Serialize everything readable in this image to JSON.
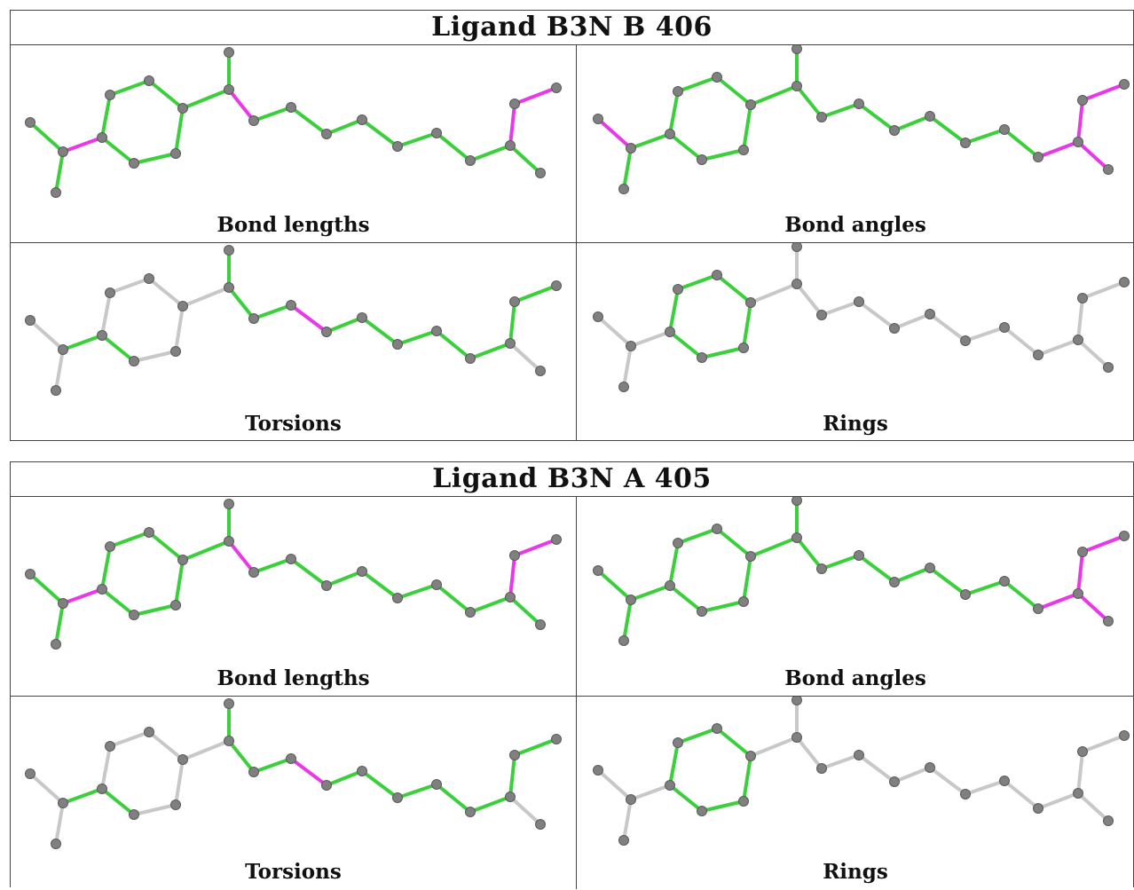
{
  "colors": {
    "ok": "#3ccf3c",
    "outlier": "#e838e8",
    "unassessed": "#c8c8c8",
    "atom": "#808080"
  },
  "blocks": [
    {
      "title": "Ligand B3N B 406",
      "panels": [
        {
          "caption": "Bond lengths",
          "bond_status": [
            "ok",
            "outlier",
            "ok",
            "ok",
            "ok",
            "ok",
            "ok",
            "ok",
            "ok",
            "ok",
            "outlier",
            "ok",
            "ok",
            "ok",
            "ok",
            "ok",
            "ok",
            "ok",
            "ok",
            "outlier",
            "ok"
          ]
        },
        {
          "caption": "Bond angles",
          "bond_status": [
            "outlier",
            "ok",
            "ok",
            "ok",
            "ok",
            "ok",
            "ok",
            "ok",
            "ok",
            "ok",
            "ok",
            "ok",
            "ok",
            "ok",
            "ok",
            "ok",
            "ok",
            "ok",
            "outlier",
            "outlier",
            "outlier"
          ]
        },
        {
          "caption": "Torsions",
          "bond_status": [
            "unassessed",
            "ok",
            "unassessed",
            "unassessed",
            "unassessed",
            "unassessed",
            "unassessed",
            "unassessed",
            "ok",
            "unassessed",
            "ok",
            "ok",
            "ok",
            "outlier",
            "ok",
            "ok",
            "ok",
            "ok",
            "ok",
            "ok",
            "unassessed"
          ]
        },
        {
          "caption": "Rings",
          "bond_status": [
            "unassessed",
            "unassessed",
            "unassessed",
            "ok",
            "ok",
            "ok",
            "ok",
            "ok",
            "ok",
            "unassessed",
            "unassessed",
            "unassessed",
            "unassessed",
            "unassessed",
            "unassessed",
            "unassessed",
            "unassessed",
            "unassessed",
            "unassessed",
            "unassessed",
            "unassessed"
          ]
        }
      ]
    },
    {
      "title": "Ligand B3N A 405",
      "panels": [
        {
          "caption": "Bond lengths",
          "bond_status": [
            "ok",
            "outlier",
            "ok",
            "ok",
            "ok",
            "ok",
            "ok",
            "ok",
            "ok",
            "ok",
            "outlier",
            "ok",
            "ok",
            "ok",
            "ok",
            "ok",
            "ok",
            "ok",
            "ok",
            "outlier",
            "ok"
          ]
        },
        {
          "caption": "Bond angles",
          "bond_status": [
            "ok",
            "ok",
            "ok",
            "ok",
            "ok",
            "ok",
            "ok",
            "ok",
            "ok",
            "ok",
            "ok",
            "ok",
            "ok",
            "ok",
            "ok",
            "ok",
            "ok",
            "ok",
            "outlier",
            "outlier",
            "outlier"
          ]
        },
        {
          "caption": "Torsions",
          "bond_status": [
            "unassessed",
            "ok",
            "unassessed",
            "unassessed",
            "unassessed",
            "unassessed",
            "unassessed",
            "unassessed",
            "ok",
            "unassessed",
            "ok",
            "ok",
            "ok",
            "outlier",
            "ok",
            "ok",
            "ok",
            "ok",
            "ok",
            "ok",
            "unassessed"
          ]
        },
        {
          "caption": "Rings",
          "bond_status": [
            "unassessed",
            "unassessed",
            "unassessed",
            "ok",
            "ok",
            "ok",
            "ok",
            "ok",
            "ok",
            "unassessed",
            "unassessed",
            "unassessed",
            "unassessed",
            "unassessed",
            "unassessed",
            "unassessed",
            "unassessed",
            "unassessed",
            "unassessed",
            "unassessed",
            "unassessed"
          ]
        }
      ]
    }
  ]
}
